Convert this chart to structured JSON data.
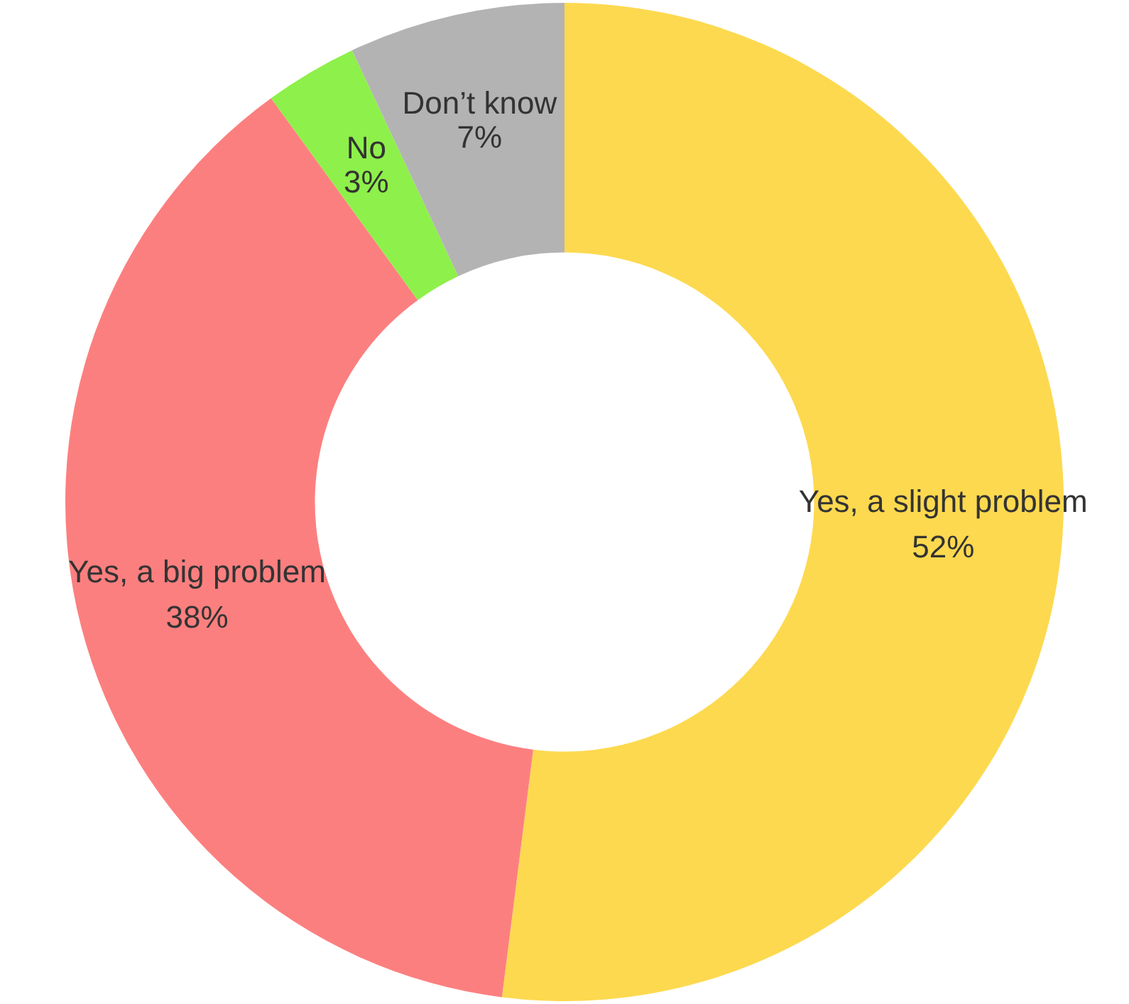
{
  "chart_data": {
    "type": "donut",
    "categories": [
      "Yes, a slight problem",
      "Yes, a big problem",
      "No",
      "Don’t know"
    ],
    "values": [
      52,
      38,
      3,
      7
    ],
    "colors": [
      "#fdd94f",
      "#fc7f7f",
      "#8ef04a",
      "#b3b3b3"
    ],
    "value_labels": [
      "52%",
      "38%",
      "3%",
      "7%"
    ],
    "legend": false
  }
}
